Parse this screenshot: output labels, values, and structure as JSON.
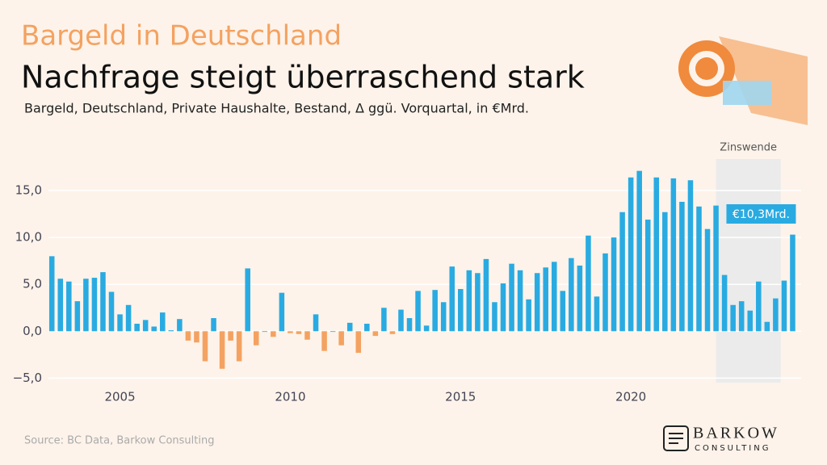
{
  "header": {
    "title": "Bargeld in Deutschland",
    "subtitle": "Nachfrage steigt überraschend stark",
    "description": "Bargeld, Deutschland, Private Haushalte, Bestand, Δ ggü. Vorquartal, in €Mrd."
  },
  "chart_data": {
    "type": "bar",
    "x": [
      2003.0,
      2003.25,
      2003.5,
      2003.75,
      2004.0,
      2004.25,
      2004.5,
      2004.75,
      2005.0,
      2005.25,
      2005.5,
      2005.75,
      2006.0,
      2006.25,
      2006.5,
      2006.75,
      2007.0,
      2007.25,
      2007.5,
      2007.75,
      2008.0,
      2008.25,
      2008.5,
      2008.75,
      2009.0,
      2009.25,
      2009.5,
      2009.75,
      2010.0,
      2010.25,
      2010.5,
      2010.75,
      2011.0,
      2011.25,
      2011.5,
      2011.75,
      2012.0,
      2012.25,
      2012.5,
      2012.75,
      2013.0,
      2013.25,
      2013.5,
      2013.75,
      2014.0,
      2014.25,
      2014.5,
      2014.75,
      2015.0,
      2015.25,
      2015.5,
      2015.75,
      2016.0,
      2016.25,
      2016.5,
      2016.75,
      2017.0,
      2017.25,
      2017.5,
      2017.75,
      2018.0,
      2018.25,
      2018.5,
      2018.75,
      2019.0,
      2019.25,
      2019.5,
      2019.75,
      2020.0,
      2020.25,
      2020.5,
      2020.75,
      2021.0,
      2021.25,
      2021.5,
      2021.75,
      2022.0,
      2022.25,
      2022.5,
      2022.75,
      2023.0,
      2023.25,
      2023.5,
      2023.75,
      2024.0,
      2024.25,
      2024.5,
      2024.75
    ],
    "values": [
      8.0,
      5.6,
      5.3,
      3.2,
      5.6,
      5.7,
      6.3,
      4.2,
      1.8,
      2.8,
      0.8,
      1.2,
      0.5,
      2.0,
      0.1,
      1.3,
      -1.0,
      -1.2,
      -3.2,
      1.4,
      -4.0,
      -1.0,
      -3.2,
      6.7,
      -1.5,
      0.0,
      -0.6,
      4.1,
      -0.2,
      -0.3,
      -0.9,
      1.8,
      -2.1,
      0.0,
      -1.5,
      0.9,
      -2.3,
      0.8,
      -0.5,
      2.5,
      -0.3,
      2.3,
      1.4,
      4.3,
      0.6,
      4.4,
      3.1,
      6.9,
      4.5,
      6.5,
      6.2,
      7.7,
      3.1,
      5.1,
      7.2,
      6.5,
      3.4,
      6.2,
      6.8,
      7.4,
      4.3,
      7.8,
      7.0,
      10.2,
      3.7,
      8.3,
      10.0,
      12.7,
      16.4,
      17.1,
      11.9,
      16.4,
      12.7,
      16.3,
      13.8,
      16.1,
      13.3,
      10.9,
      13.4,
      6.0,
      2.8,
      3.2,
      2.2,
      5.3,
      1.0,
      3.5,
      5.4,
      10.3
    ],
    "value_labels": [
      null,
      null,
      null,
      null,
      null,
      null,
      null,
      null,
      null,
      null,
      null,
      null,
      null,
      null,
      null,
      null,
      null,
      null,
      null,
      null,
      null,
      null,
      null,
      null,
      null,
      null,
      null,
      null,
      null,
      null,
      null,
      null,
      null,
      null,
      null,
      null,
      null,
      null,
      null,
      null,
      null,
      null,
      null,
      null,
      null,
      null,
      null,
      null,
      null,
      null,
      null,
      null,
      null,
      null,
      null,
      null,
      null,
      null,
      null,
      null,
      null,
      null,
      null,
      null,
      null,
      null,
      null,
      null,
      null,
      null,
      null,
      null,
      null,
      null,
      null,
      null,
      null,
      null,
      null,
      null,
      null,
      null,
      null,
      null,
      null,
      null,
      null,
      "€10,3Mrd."
    ],
    "positive_color": "#29abe2",
    "negative_color": "#f4a261",
    "xlim": [
      2002.9,
      2025.0
    ],
    "xticks": [
      2005,
      2010,
      2015,
      2020
    ],
    "ylim": [
      -6,
      17.5
    ],
    "yticks": [
      {
        "value": -5,
        "label": "−5,0"
      },
      {
        "value": 0,
        "label": "0,0"
      },
      {
        "value": 5,
        "label": "5,0"
      },
      {
        "value": 10,
        "label": "10,0"
      },
      {
        "value": 15,
        "label": "15,0"
      }
    ],
    "grid": true,
    "shade": {
      "label": "Zinswende",
      "x": [
        2022.5,
        2024.4
      ]
    }
  },
  "footer": {
    "source": "Source: BC Data, Barkow Consulting",
    "logo": "BARKOW",
    "logo_sub": "CONSULTING"
  }
}
